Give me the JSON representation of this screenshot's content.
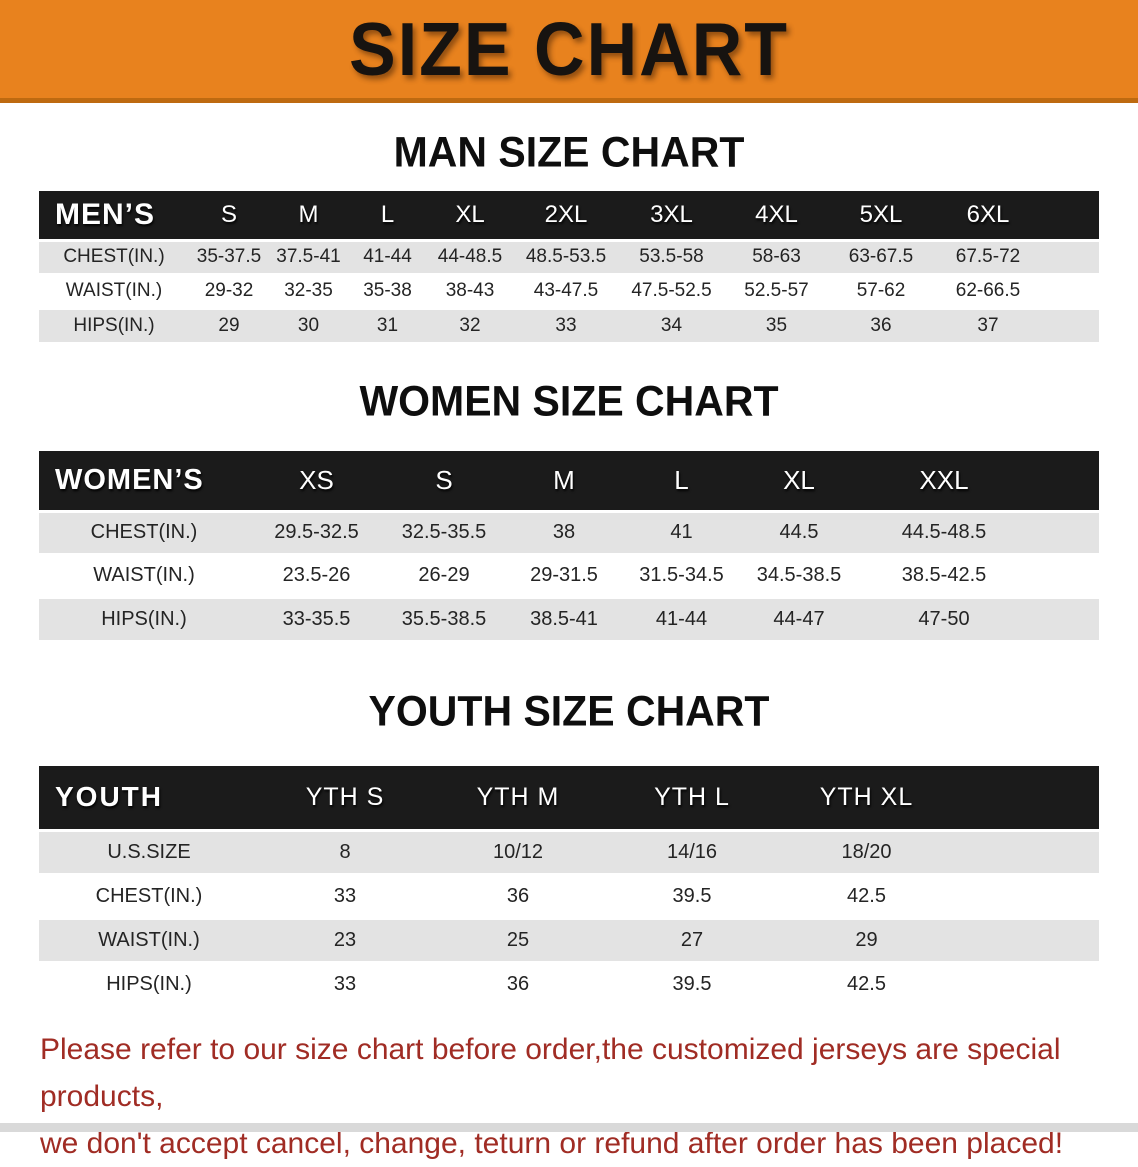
{
  "banner": {
    "title": "SIZE CHART",
    "background_color": "#E8821E",
    "border_color": "#BE6A10"
  },
  "colors": {
    "table_header_bg": "#1B1B1B",
    "table_row_stripe": "#E3E3E3",
    "footer_text_color": "#A02C24"
  },
  "sections": [
    {
      "heading": "MAN SIZE CHART",
      "table": {
        "header": [
          "MEN’S",
          "S",
          "M",
          "L",
          "XL",
          "2XL",
          "3XL",
          "4XL",
          "5XL",
          "6XL"
        ],
        "rows": [
          {
            "label": "CHEST(IN.)",
            "values": [
              "35-37.5",
              "37.5-41",
              "41-44",
              "44-48.5",
              "48.5-53.5",
              "53.5-58",
              "58-63",
              "63-67.5",
              "67.5-72"
            ]
          },
          {
            "label": "WAIST(IN.)",
            "values": [
              "29-32",
              "32-35",
              "35-38",
              "38-43",
              "43-47.5",
              "47.5-52.5",
              "52.5-57",
              "57-62",
              "62-66.5"
            ]
          },
          {
            "label": "HIPS(IN.)",
            "values": [
              "29",
              "30",
              "31",
              "32",
              "33",
              "34",
              "35",
              "36",
              "37"
            ]
          }
        ]
      }
    },
    {
      "heading": "WOMEN SIZE CHART",
      "table": {
        "header": [
          "WOMEN’S",
          "XS",
          "S",
          "M",
          "L",
          "XL",
          "XXL"
        ],
        "rows": [
          {
            "label": "CHEST(IN.)",
            "values": [
              "29.5-32.5",
              "32.5-35.5",
              "38",
              "41",
              "44.5",
              "44.5-48.5"
            ]
          },
          {
            "label": "WAIST(IN.)",
            "values": [
              "23.5-26",
              "26-29",
              "29-31.5",
              "31.5-34.5",
              "34.5-38.5",
              "38.5-42.5"
            ]
          },
          {
            "label": "HIPS(IN.)",
            "values": [
              "33-35.5",
              "35.5-38.5",
              "38.5-41",
              "41-44",
              "44-47",
              "47-50"
            ]
          }
        ]
      }
    },
    {
      "heading": "YOUTH SIZE CHART",
      "table": {
        "header": [
          "YOUTH",
          "YTH S",
          "YTH M",
          "YTH L",
          "YTH XL"
        ],
        "rows": [
          {
            "label": "U.S.SIZE",
            "values": [
              "8",
              "10/12",
              "14/16",
              "18/20"
            ]
          },
          {
            "label": "CHEST(IN.)",
            "values": [
              "33",
              "36",
              "39.5",
              "42.5"
            ]
          },
          {
            "label": "WAIST(IN.)",
            "values": [
              "23",
              "25",
              "27",
              "29"
            ]
          },
          {
            "label": "HIPS(IN.)",
            "values": [
              "33",
              "36",
              "39.5",
              "42.5"
            ]
          }
        ]
      }
    }
  ],
  "footer": {
    "line1": "Please refer to our size chart before order,the customized jerseys are special products,",
    "line2": "we don't accept cancel, change, teturn or refund after order has been placed!"
  }
}
